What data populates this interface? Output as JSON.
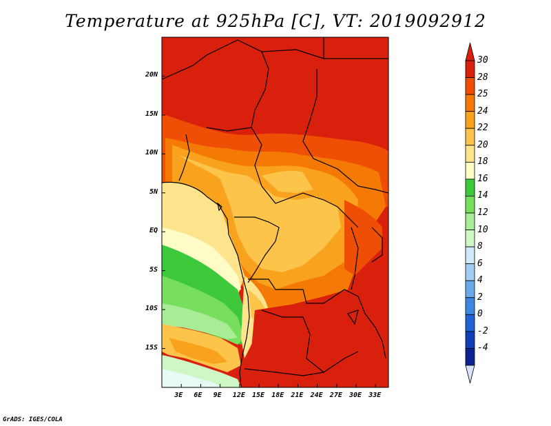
{
  "title": "Temperature at 925hPa [C], VT: 2019092912",
  "credit": "GrADS: IGES/COLA",
  "map": {
    "lon_range": [
      0,
      35
    ],
    "lat_range": [
      -20,
      25
    ],
    "x_ticks": [
      {
        "lon": 3,
        "label": "3E"
      },
      {
        "lon": 6,
        "label": "6E"
      },
      {
        "lon": 9,
        "label": "9E"
      },
      {
        "lon": 12,
        "label": "12E"
      },
      {
        "lon": 15,
        "label": "15E"
      },
      {
        "lon": 18,
        "label": "18E"
      },
      {
        "lon": 21,
        "label": "21E"
      },
      {
        "lon": 24,
        "label": "24E"
      },
      {
        "lon": 27,
        "label": "27E"
      },
      {
        "lon": 30,
        "label": "30E"
      },
      {
        "lon": 33,
        "label": "33E"
      }
    ],
    "y_ticks": [
      {
        "lat": 20,
        "label": "20N"
      },
      {
        "lat": 15,
        "label": "15N"
      },
      {
        "lat": 10,
        "label": "10N"
      },
      {
        "lat": 5,
        "label": "5N"
      },
      {
        "lat": 0,
        "label": "EQ"
      },
      {
        "lat": -5,
        "label": "5S"
      },
      {
        "lat": -10,
        "label": "10S"
      },
      {
        "lat": -15,
        "label": "15S"
      }
    ]
  },
  "colorbar": {
    "labels": [
      "30",
      "28",
      "25",
      "24",
      "22",
      "20",
      "18",
      "16",
      "14",
      "12",
      "10",
      "8",
      "6",
      "4",
      "2",
      "0",
      "-2",
      "-4"
    ],
    "colors": [
      "#d8200c",
      "#ef4f05",
      "#f57a05",
      "#f9a21e",
      "#fcc44a",
      "#fde48c",
      "#fdfcc6",
      "#3ec93c",
      "#78df5e",
      "#a8ed96",
      "#cff7c6",
      "#cfeaf6",
      "#a2ccf2",
      "#6aaae8",
      "#3e87e0",
      "#1f62d6",
      "#1040b8",
      "#0c2290",
      "#0a0c6a"
    ],
    "over_color": "#d8200c",
    "under_color": "#d8e2f8"
  }
}
